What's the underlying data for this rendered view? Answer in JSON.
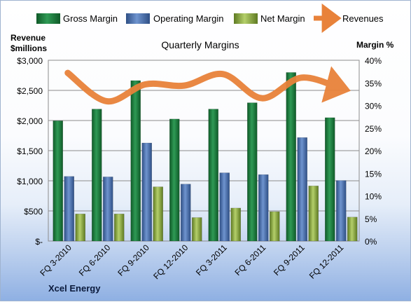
{
  "chart_data": {
    "type": "bar",
    "title": "Quarterly Margins",
    "company": "Xcel Energy",
    "left_axis_label": [
      "Revenue",
      "$millions"
    ],
    "right_axis_label": "Margin %",
    "left_ylim": [
      0,
      3000
    ],
    "right_ylim": [
      0,
      40
    ],
    "left_ticks": [
      "$-",
      "$500",
      "$1,000",
      "$1,500",
      "$2,000",
      "$2,500",
      "$3,000"
    ],
    "right_ticks": [
      "0%",
      "5%",
      "10%",
      "15%",
      "20%",
      "25%",
      "30%",
      "35%",
      "40%"
    ],
    "grid": true,
    "legend_position": "top",
    "categories": [
      "FQ 3-2010",
      "FQ 6-2010",
      "FQ 9-2010",
      "FQ 12-2010",
      "FQ 3-2011",
      "FQ 6-2011",
      "FQ 9-2011",
      "FQ 12-2011"
    ],
    "series": [
      {
        "name": "Gross Margin",
        "type": "bar",
        "axis": "right",
        "color": "#1f7a3e",
        "values": [
          26.6,
          29.2,
          35.5,
          27.0,
          29.2,
          30.6,
          37.3,
          27.3
        ]
      },
      {
        "name": "Operating Margin",
        "type": "bar",
        "axis": "right",
        "color": "#4a72b0",
        "values": [
          14.3,
          14.2,
          21.7,
          12.6,
          15.1,
          14.7,
          22.9,
          13.4
        ]
      },
      {
        "name": "Net Margin",
        "type": "bar",
        "axis": "right",
        "color": "#8fae3f",
        "values": [
          6.0,
          6.0,
          12.0,
          5.2,
          7.3,
          6.5,
          12.2,
          5.3
        ]
      },
      {
        "name": "Revenues",
        "type": "line",
        "axis": "left",
        "color": "#e8823a",
        "values": [
          2790,
          2320,
          2600,
          2580,
          2770,
          2370,
          2710,
          2540
        ]
      }
    ]
  }
}
